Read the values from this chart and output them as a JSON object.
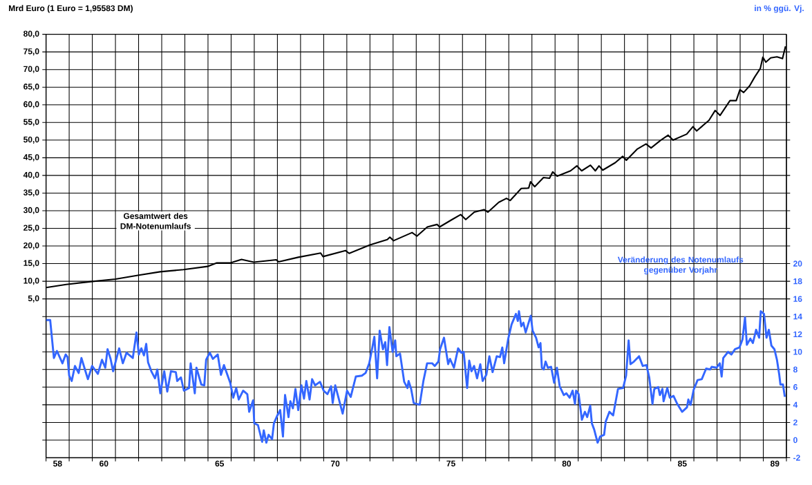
{
  "chart_data": {
    "type": "line",
    "ylabel": "Mrd Euro (1 Euro = 1,95583 DM)",
    "y2label": "in % ggü. Vj.",
    "xlim": [
      57.5,
      89.5
    ],
    "ylim": [
      -40,
      80
    ],
    "y2lim": [
      -2,
      46
    ],
    "grid": true,
    "xticks": [
      {
        "value": 57.5,
        "label": null
      },
      58,
      {
        "value": 58.5,
        "label": null
      },
      {
        "value": 59.5,
        "label": null
      },
      60,
      {
        "value": 60.5,
        "label": null
      },
      {
        "value": 61.5,
        "label": null
      },
      {
        "value": 62.5,
        "label": null
      },
      {
        "value": 63.5,
        "label": null
      },
      {
        "value": 64.5,
        "label": null
      },
      65,
      {
        "value": 65.5,
        "label": null
      },
      {
        "value": 66.5,
        "label": null
      },
      {
        "value": 67.5,
        "label": null
      },
      {
        "value": 68.5,
        "label": null
      },
      {
        "value": 69.5,
        "label": null
      },
      70,
      {
        "value": 70.5,
        "label": null
      },
      {
        "value": 71.5,
        "label": null
      },
      {
        "value": 72.5,
        "label": null
      },
      {
        "value": 73.5,
        "label": null
      },
      {
        "value": 74.5,
        "label": null
      },
      75,
      {
        "value": 75.5,
        "label": null
      },
      {
        "value": 76.5,
        "label": null
      },
      {
        "value": 77.5,
        "label": null
      },
      {
        "value": 78.5,
        "label": null
      },
      {
        "value": 79.5,
        "label": null
      },
      80,
      {
        "value": 80.5,
        "label": null
      },
      {
        "value": 81.5,
        "label": null
      },
      {
        "value": 82.5,
        "label": null
      },
      {
        "value": 83.5,
        "label": null
      },
      {
        "value": 84.5,
        "label": null
      },
      85,
      {
        "value": 85.5,
        "label": null
      },
      {
        "value": 86.5,
        "label": null
      },
      {
        "value": 87.5,
        "label": null
      },
      {
        "value": 88.5,
        "label": null
      },
      89,
      {
        "value": 89.5,
        "label": null
      }
    ],
    "yticks": [
      {
        "value": -35,
        "label": null
      },
      {
        "value": -30,
        "label": null
      },
      {
        "value": -25,
        "label": null
      },
      {
        "value": -20,
        "label": null
      },
      {
        "value": -15,
        "label": null
      },
      {
        "value": -10,
        "label": null
      },
      {
        "value": -5,
        "label": null
      },
      {
        "value": 0,
        "label": null
      },
      {
        "value": 5,
        "label": "5,0"
      },
      {
        "value": 10,
        "label": "10,0"
      },
      {
        "value": 15,
        "label": "15,0"
      },
      {
        "value": 20,
        "label": "20,0"
      },
      {
        "value": 25,
        "label": "25,0"
      },
      {
        "value": 30,
        "label": "30,0"
      },
      {
        "value": 35,
        "label": "35,0"
      },
      {
        "value": 40,
        "label": "40,0"
      },
      {
        "value": 45,
        "label": "45,0"
      },
      {
        "value": 50,
        "label": "50,0"
      },
      {
        "value": 55,
        "label": "55,0"
      },
      {
        "value": 60,
        "label": "60,0"
      },
      {
        "value": 65,
        "label": "65,0"
      },
      {
        "value": 70,
        "label": "70,0"
      },
      {
        "value": 75,
        "label": "75,0"
      },
      {
        "value": 80,
        "label": "80,0"
      }
    ],
    "y2ticks": [
      -2,
      0,
      2,
      4,
      6,
      8,
      10,
      12,
      14,
      16,
      18,
      20,
      {
        "value": 22,
        "label": null
      },
      {
        "value": 24,
        "label": null
      },
      {
        "value": 26,
        "label": null
      },
      {
        "value": 28,
        "label": null
      },
      {
        "value": 30,
        "label": null
      },
      {
        "value": 32,
        "label": null
      },
      {
        "value": 34,
        "label": null
      },
      {
        "value": 36,
        "label": null
      },
      {
        "value": 38,
        "label": null
      },
      {
        "value": 40,
        "label": null
      },
      {
        "value": 42,
        "label": null
      },
      {
        "value": 44,
        "label": null
      }
    ],
    "series": [
      {
        "name": "Gesamtwert des DM-Notenumlaufs",
        "color": "#000000",
        "axis": "y",
        "x": [
          57.5,
          58.37,
          59.44,
          60.5,
          61.47,
          62.43,
          63.44,
          64.48,
          64.88,
          65.47,
          65.95,
          66.48,
          67.45,
          67.55,
          68.4,
          69.37,
          69.47,
          70.44,
          70.6,
          71.5,
          72.25,
          72.36,
          72.52,
          73.32,
          73.53,
          73.98,
          74.4,
          74.51,
          75.05,
          75.42,
          75.64,
          76.01,
          76.43,
          76.6,
          77.07,
          77.4,
          77.56,
          78.04,
          78.36,
          78.44,
          78.62,
          79.0,
          79.26,
          79.4,
          79.59,
          80.17,
          80.44,
          80.65,
          81.03,
          81.24,
          81.4,
          81.56,
          82.1,
          82.42,
          82.58,
          83.06,
          83.43,
          83.65,
          84.07,
          84.39,
          84.6,
          85.19,
          85.46,
          85.62,
          86.15,
          86.42,
          86.63,
          87.06,
          87.33,
          87.49,
          87.65,
          87.91,
          88.13,
          88.37,
          88.48,
          88.61,
          88.82,
          89.09,
          89.33,
          89.46
        ],
        "values": [
          8.2,
          9.1,
          9.9,
          10.6,
          11.7,
          12.7,
          13.3,
          14.2,
          15.2,
          15.2,
          16.2,
          15.4,
          16.1,
          15.5,
          16.8,
          18.0,
          17.0,
          18.7,
          17.9,
          20.3,
          21.8,
          22.5,
          21.5,
          23.8,
          22.8,
          25.4,
          26.1,
          25.4,
          27.5,
          28.9,
          27.5,
          29.6,
          30.3,
          29.6,
          32.4,
          33.5,
          32.9,
          36.3,
          36.4,
          38.2,
          36.8,
          39.4,
          39.2,
          41.0,
          39.8,
          41.3,
          42.7,
          41.3,
          42.9,
          41.3,
          42.7,
          41.5,
          43.6,
          45.4,
          44.3,
          47.5,
          48.9,
          47.8,
          50.0,
          51.4,
          50.0,
          51.7,
          53.8,
          52.6,
          55.6,
          58.4,
          57.0,
          61.2,
          61.2,
          64.3,
          63.5,
          65.4,
          67.9,
          70.3,
          73.5,
          72.1,
          73.3,
          73.6,
          73.1,
          76.6
        ]
      },
      {
        "name": "Veränderung des Notenumlaufs gegenüber Vorjahr",
        "color": "#3366ff",
        "axis": "y2",
        "x": [
          57.5,
          57.68,
          57.84,
          57.97,
          58.21,
          58.35,
          58.43,
          58.5,
          58.61,
          58.75,
          58.91,
          59.03,
          59.31,
          59.49,
          59.74,
          59.92,
          60.06,
          60.16,
          60.29,
          60.4,
          60.66,
          60.82,
          60.98,
          61.25,
          61.41,
          61.51,
          61.62,
          61.73,
          61.83,
          61.91,
          62.05,
          62.21,
          62.31,
          62.44,
          62.61,
          62.74,
          62.9,
          63.11,
          63.17,
          63.33,
          63.46,
          63.68,
          63.75,
          63.93,
          64.0,
          64.21,
          64.34,
          64.42,
          64.58,
          64.71,
          64.92,
          65.06,
          65.19,
          65.46,
          65.59,
          65.72,
          65.83,
          66.02,
          66.2,
          66.28,
          66.45,
          66.5,
          66.66,
          66.84,
          66.91,
          67.02,
          67.12,
          67.27,
          67.35,
          67.48,
          67.62,
          67.74,
          67.83,
          67.98,
          68.06,
          68.17,
          68.28,
          68.4,
          68.54,
          68.65,
          68.75,
          68.89,
          69.0,
          69.13,
          69.34,
          69.5,
          69.66,
          69.82,
          69.89,
          70.0,
          70.14,
          70.32,
          70.51,
          70.67,
          70.89,
          71.15,
          71.31,
          71.47,
          71.69,
          71.81,
          71.92,
          72.06,
          72.16,
          72.24,
          72.34,
          72.48,
          72.59,
          72.64,
          72.8,
          72.98,
          73.12,
          73.17,
          73.28,
          73.39,
          73.65,
          73.81,
          73.97,
          74.19,
          74.3,
          74.46,
          74.53,
          74.7,
          74.88,
          74.96,
          75.13,
          75.31,
          75.45,
          75.55,
          75.7,
          75.79,
          75.89,
          76.0,
          76.13,
          76.27,
          76.37,
          76.53,
          76.66,
          76.8,
          76.98,
          77.12,
          77.22,
          77.3,
          77.47,
          77.62,
          77.81,
          77.89,
          77.94,
          78.04,
          78.13,
          78.23,
          78.45,
          78.53,
          78.68,
          78.79,
          78.87,
          78.93,
          79.01,
          79.09,
          79.19,
          79.33,
          79.46,
          79.58,
          79.7,
          79.88,
          79.99,
          80.13,
          80.26,
          80.36,
          80.41,
          80.52,
          80.66,
          80.79,
          80.89,
          81.02,
          81.09,
          81.19,
          81.34,
          81.45,
          81.62,
          81.69,
          81.85,
          82.01,
          82.22,
          82.44,
          82.57,
          82.68,
          82.76,
          82.91,
          83.13,
          83.29,
          83.45,
          83.57,
          83.71,
          83.79,
          83.96,
          84.03,
          84.14,
          84.19,
          84.35,
          84.46,
          84.62,
          84.78,
          84.99,
          85.2,
          85.26,
          85.36,
          85.49,
          85.66,
          85.84,
          86.03,
          86.2,
          86.27,
          86.48,
          86.62,
          86.7,
          86.77,
          86.98,
          87.12,
          87.28,
          87.47,
          87.6,
          87.71,
          87.79,
          87.94,
          88.05,
          88.19,
          88.32,
          88.39,
          88.53,
          88.64,
          88.74,
          88.85,
          88.98,
          89.09,
          89.19,
          89.24,
          89.35,
          89.43
        ],
        "values": [
          13.6,
          13.6,
          9.3,
          10.1,
          8.7,
          9.7,
          9.4,
          7.3,
          6.7,
          8.4,
          7.6,
          9.3,
          6.9,
          8.4,
          7.5,
          9.1,
          8.2,
          10.3,
          9.2,
          7.8,
          10.4,
          8.7,
          9.9,
          9.3,
          12.2,
          9.7,
          10.4,
          9.6,
          10.9,
          8.8,
          7.8,
          7.0,
          8.0,
          5.3,
          7.8,
          5.5,
          7.8,
          7.7,
          6.7,
          7.1,
          5.6,
          5.9,
          8.7,
          5.3,
          8.2,
          6.3,
          6.2,
          9.1,
          9.9,
          9.2,
          9.7,
          7.4,
          8.5,
          6.5,
          4.8,
          5.9,
          4.6,
          5.6,
          5.2,
          3.2,
          4.5,
          1.9,
          1.7,
          -0.2,
          1.1,
          -0.3,
          0.6,
          0.1,
          1.9,
          2.7,
          3.4,
          0.4,
          5.1,
          2.6,
          4.4,
          3.6,
          5.8,
          3.4,
          6.2,
          4.7,
          6.7,
          4.6,
          6.9,
          6.2,
          6.6,
          5.6,
          5.2,
          6.1,
          4.2,
          6.2,
          4.8,
          3.0,
          5.6,
          4.9,
          7.2,
          7.3,
          7.6,
          8.7,
          11.7,
          7.0,
          12.4,
          10.3,
          11.1,
          8.5,
          12.8,
          10.0,
          11.3,
          9.5,
          9.8,
          6.6,
          5.9,
          6.7,
          5.8,
          4.2,
          4.0,
          6.7,
          8.7,
          8.7,
          8.4,
          8.9,
          10.3,
          11.6,
          8.6,
          9.2,
          8.2,
          10.4,
          9.9,
          10.0,
          5.9,
          9.0,
          7.8,
          8.4,
          7.0,
          8.6,
          6.7,
          7.4,
          9.5,
          7.7,
          9.5,
          9.4,
          10.5,
          8.7,
          11.4,
          13.1,
          14.3,
          13.5,
          14.6,
          12.9,
          13.3,
          12.2,
          14.1,
          12.4,
          11.6,
          10.5,
          11.0,
          8.2,
          8.0,
          8.9,
          8.2,
          8.3,
          6.5,
          8.2,
          6.1,
          5.1,
          5.3,
          4.8,
          5.6,
          4.1,
          5.6,
          5.2,
          2.3,
          3.2,
          2.6,
          3.9,
          1.9,
          1.2,
          -0.3,
          0.4,
          0.6,
          2.1,
          3.2,
          2.8,
          5.8,
          5.9,
          7.3,
          11.3,
          8.6,
          8.9,
          9.5,
          8.4,
          8.5,
          7.1,
          4.1,
          5.8,
          6.0,
          5.1,
          5.8,
          4.4,
          5.9,
          4.8,
          5.0,
          4.1,
          3.2,
          3.7,
          4.6,
          4.0,
          5.7,
          6.8,
          6.9,
          8.1,
          8.0,
          8.3,
          8.2,
          8.7,
          7.2,
          9.3,
          10.0,
          9.7,
          10.3,
          10.5,
          11.4,
          13.9,
          10.8,
          11.5,
          11.0,
          12.5,
          11.6,
          14.6,
          14.3,
          11.6,
          12.5,
          10.7,
          10.3,
          9.1,
          7.4,
          6.3,
          6.3,
          4.9
        ]
      }
    ]
  }
}
